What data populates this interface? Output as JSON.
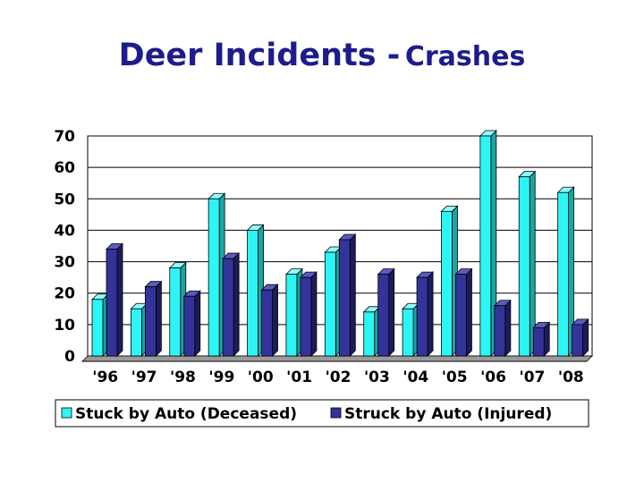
{
  "title": {
    "main": "Deer Incidents -",
    "sub": "Crashes"
  },
  "colors": {
    "series1_front": "#2ef5f5",
    "series1_side": "#1aa5a5",
    "series1_top": "#8ffcfc",
    "series2_front": "#33339a",
    "series2_side": "#1c1c5a",
    "series2_top": "#5a5ac4",
    "floor": "#9a9a9a"
  },
  "chart_data": {
    "type": "bar",
    "title": "Deer Incidents - Crashes",
    "categories": [
      "'96",
      "'97",
      "'98",
      "'99",
      "'00",
      "'01",
      "'02",
      "'03",
      "'04",
      "'05",
      "'06",
      "'07",
      "'08"
    ],
    "series": [
      {
        "name": "Stuck by Auto (Deceased)",
        "values": [
          18,
          15,
          28,
          50,
          40,
          26,
          33,
          14,
          15,
          46,
          70,
          57,
          52
        ]
      },
      {
        "name": "Struck by Auto (Injured)",
        "values": [
          34,
          22,
          19,
          31,
          21,
          25,
          37,
          26,
          25,
          26,
          16,
          9,
          10
        ]
      }
    ],
    "ylim": [
      0,
      70
    ],
    "yticks": [
      0,
      10,
      20,
      30,
      40,
      50,
      60,
      70
    ],
    "xlabel": "",
    "ylabel": "",
    "grid": true,
    "legend": "bottom",
    "three_d": true
  }
}
